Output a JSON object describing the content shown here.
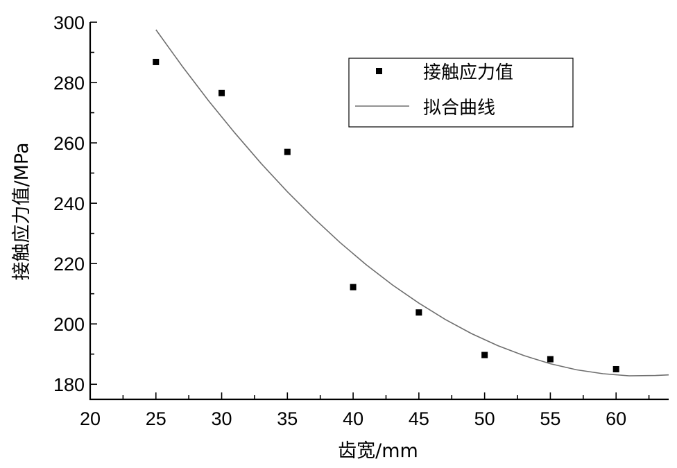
{
  "chart_data": {
    "type": "scatter",
    "xlabel": "齿宽/mm",
    "ylabel": "接触应力值/MPa",
    "xlim": [
      20,
      64
    ],
    "ylim": [
      175,
      300
    ],
    "xticks": [
      20,
      25,
      30,
      35,
      40,
      45,
      50,
      55,
      60
    ],
    "yticks": [
      180,
      200,
      220,
      240,
      260,
      280,
      300
    ],
    "legend_position": "top-right",
    "series": [
      {
        "name": "接触应力值",
        "kind": "points",
        "color": "#000000",
        "points": [
          {
            "x": 25,
            "y": 286.8
          },
          {
            "x": 30,
            "y": 276.5
          },
          {
            "x": 35,
            "y": 257.0
          },
          {
            "x": 40,
            "y": 212.2
          },
          {
            "x": 45,
            "y": 203.8
          },
          {
            "x": 50,
            "y": 189.7
          },
          {
            "x": 55,
            "y": 188.3
          },
          {
            "x": 60,
            "y": 185.0
          }
        ]
      },
      {
        "name": "拟合曲线",
        "kind": "line",
        "color": "#6e6e6e",
        "points": [
          {
            "x": 25,
            "y": 297.5
          },
          {
            "x": 27,
            "y": 285.4
          },
          {
            "x": 29,
            "y": 274.0
          },
          {
            "x": 31,
            "y": 263.3
          },
          {
            "x": 33,
            "y": 253.2
          },
          {
            "x": 35,
            "y": 243.8
          },
          {
            "x": 37,
            "y": 235.1
          },
          {
            "x": 39,
            "y": 227.0
          },
          {
            "x": 41,
            "y": 219.6
          },
          {
            "x": 43,
            "y": 212.9
          },
          {
            "x": 45,
            "y": 206.9
          },
          {
            "x": 47,
            "y": 201.5
          },
          {
            "x": 49,
            "y": 196.8
          },
          {
            "x": 51,
            "y": 192.8
          },
          {
            "x": 53,
            "y": 189.5
          },
          {
            "x": 55,
            "y": 186.8
          },
          {
            "x": 57,
            "y": 184.8
          },
          {
            "x": 59,
            "y": 183.5
          },
          {
            "x": 61,
            "y": 182.8
          },
          {
            "x": 63,
            "y": 182.9
          },
          {
            "x": 64,
            "y": 183.1
          }
        ]
      }
    ]
  }
}
